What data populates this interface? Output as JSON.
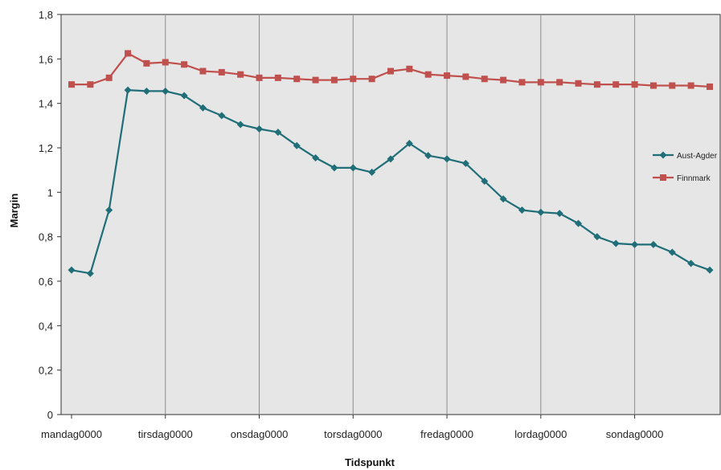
{
  "chart_data": {
    "type": "line",
    "xlabel": "Tidspunkt",
    "ylabel": "Margin",
    "ylim": [
      0,
      1.8
    ],
    "yticks": [
      "0",
      "0,2",
      "0,4",
      "0,6",
      "0,8",
      "1",
      "1,2",
      "1,4",
      "1,6",
      "1,8"
    ],
    "ytick_values": [
      0,
      0.2,
      0.4,
      0.6,
      0.8,
      1.0,
      1.2,
      1.4,
      1.6,
      1.8
    ],
    "x_tick_labels": [
      "mandag0000",
      "tirsdag0000",
      "onsdag0000",
      "torsdag0000",
      "fredag0000",
      "lordag0000",
      "sondag0000"
    ],
    "x_tick_indices": [
      0,
      5,
      10,
      15,
      20,
      25,
      30
    ],
    "n_points": 35,
    "grid": "vertical lines at day ticks",
    "legend_position": "right",
    "plot_background": "#e6e6e6",
    "series": [
      {
        "name": "Aust-Agder",
        "color": "#1f6e78",
        "marker": "diamond",
        "values": [
          0.65,
          0.635,
          0.92,
          1.46,
          1.455,
          1.455,
          1.435,
          1.38,
          1.345,
          1.305,
          1.285,
          1.27,
          1.21,
          1.155,
          1.11,
          1.11,
          1.09,
          1.15,
          1.22,
          1.165,
          1.15,
          1.13,
          1.05,
          0.97,
          0.92,
          0.91,
          0.905,
          0.86,
          0.8,
          0.77,
          0.765,
          0.765,
          0.73,
          0.68,
          0.65
        ]
      },
      {
        "name": "Finnmark",
        "color": "#c0504d",
        "marker": "square",
        "values": [
          1.485,
          1.485,
          1.515,
          1.625,
          1.58,
          1.585,
          1.575,
          1.545,
          1.54,
          1.53,
          1.515,
          1.515,
          1.51,
          1.505,
          1.505,
          1.51,
          1.51,
          1.545,
          1.555,
          1.53,
          1.525,
          1.52,
          1.51,
          1.505,
          1.495,
          1.495,
          1.495,
          1.49,
          1.485,
          1.485,
          1.485,
          1.48,
          1.48,
          1.48,
          1.475
        ]
      }
    ]
  }
}
